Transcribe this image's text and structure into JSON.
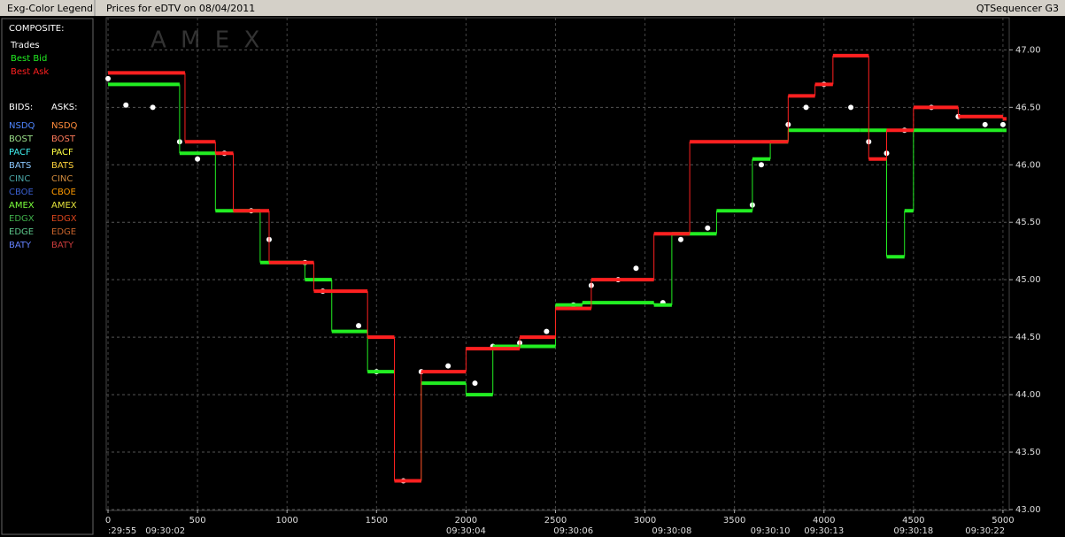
{
  "header": {
    "legend_title": "Exg-Color Legend",
    "title": "Prices for  eDTV  on  08/04/2011",
    "app": "QTSequencer G3"
  },
  "legend": {
    "composite_label": "COMPOSITE:",
    "bids_label": "BIDS:",
    "asks_label": "ASKS:",
    "bids": [
      {
        "name": "NSDQ",
        "color": "#4f86ff"
      },
      {
        "name": "BOST",
        "color": "#9be08a"
      },
      {
        "name": "PACF",
        "color": "#3ff0f0"
      },
      {
        "name": "BATS",
        "color": "#8cc8ff"
      },
      {
        "name": "CINC",
        "color": "#4aa6a6"
      },
      {
        "name": "CBOE",
        "color": "#3a5fd0"
      },
      {
        "name": "AMEX",
        "color": "#7cff3c"
      },
      {
        "name": "EDGX",
        "color": "#3fae4a"
      },
      {
        "name": "EDGE",
        "color": "#5cc58a"
      },
      {
        "name": "BATY",
        "color": "#6482ff"
      }
    ],
    "asks": [
      {
        "name": "NSDQ",
        "color": "#ff8c3c"
      },
      {
        "name": "BOST",
        "color": "#ff7a5a"
      },
      {
        "name": "PACF",
        "color": "#ffff44"
      },
      {
        "name": "BATS",
        "color": "#ffd23c"
      },
      {
        "name": "CINC",
        "color": "#d08a3c"
      },
      {
        "name": "CBOE",
        "color": "#ff9a00"
      },
      {
        "name": "AMEX",
        "color": "#e6e43c"
      },
      {
        "name": "EDGX",
        "color": "#d8441c"
      },
      {
        "name": "EDGE",
        "color": "#c8642c"
      },
      {
        "name": "BATY",
        "color": "#cc3c3c"
      }
    ]
  },
  "chart_data": {
    "type": "line",
    "watermark": "A M E X",
    "xlim": [
      -10,
      5035
    ],
    "ylim": [
      43,
      47.28
    ],
    "grid": true,
    "xticks": [
      0,
      500,
      1000,
      1500,
      2000,
      2500,
      3000,
      3500,
      4000,
      4500,
      5000
    ],
    "time_ticks": [
      {
        "value": 0,
        "label": ":29:55"
      },
      {
        "value": 320,
        "label": "09:30:02"
      },
      {
        "value": 2000,
        "label": "09:30:04"
      },
      {
        "value": 2600,
        "label": "09:30:06"
      },
      {
        "value": 3150,
        "label": "09:30:08"
      },
      {
        "value": 3700,
        "label": "09:30:10"
      },
      {
        "value": 4000,
        "label": "09:30:13"
      },
      {
        "value": 4500,
        "label": "09:30:18"
      },
      {
        "value": 4900,
        "label": "09:30:22"
      }
    ],
    "yticks": [
      {
        "value": 43,
        "label": "43.00"
      },
      {
        "value": 43.5,
        "label": "43.50"
      },
      {
        "value": 44,
        "label": "44.00"
      },
      {
        "value": 44.5,
        "label": "44.50"
      },
      {
        "value": 45,
        "label": "45.00"
      },
      {
        "value": 45.5,
        "label": "45.50"
      },
      {
        "value": 46,
        "label": "46.00"
      },
      {
        "value": 46.5,
        "label": "46.50"
      },
      {
        "value": 47,
        "label": "47.00"
      }
    ],
    "series": [
      {
        "name": "Trades",
        "color": "#ffffff",
        "style": "points",
        "x": [
          0,
          100,
          250,
          400,
          500,
          650,
          800,
          900,
          1100,
          1200,
          1400,
          1500,
          1650,
          1750,
          1900,
          2050,
          2150,
          2300,
          2450,
          2600,
          2700,
          2850,
          2950,
          3100,
          3200,
          3350,
          3600,
          3650,
          3800,
          3900,
          4000,
          4150,
          4250,
          4350,
          4450,
          4600,
          4750,
          4900,
          5000
        ],
        "values": [
          46.75,
          46.52,
          46.5,
          46.2,
          46.05,
          46.1,
          45.6,
          45.35,
          45.15,
          44.9,
          44.6,
          44.2,
          43.25,
          44.2,
          44.25,
          44.1,
          44.42,
          44.45,
          44.55,
          44.78,
          44.95,
          45.0,
          45.1,
          44.8,
          45.35,
          45.45,
          45.65,
          46.0,
          46.35,
          46.5,
          46.7,
          46.5,
          46.2,
          46.1,
          46.3,
          46.5,
          46.42,
          46.35,
          46.35
        ]
      },
      {
        "name": "Best Bid",
        "color": "#22ee22",
        "style": "step",
        "x": [
          0,
          400,
          600,
          850,
          1100,
          1250,
          1450,
          1600,
          1750,
          2000,
          2150,
          2500,
          2650,
          3050,
          3150,
          3400,
          3600,
          3700,
          3800,
          4200,
          4350,
          4450,
          4500,
          5000
        ],
        "values": [
          46.7,
          46.1,
          45.6,
          45.15,
          45.0,
          44.55,
          44.2,
          43.25,
          44.1,
          44.0,
          44.42,
          44.78,
          44.8,
          44.78,
          45.4,
          45.6,
          46.05,
          46.2,
          46.3,
          46.3,
          45.2,
          45.6,
          46.3,
          46.3
        ]
      },
      {
        "name": "Best Ask",
        "color": "#ff2020",
        "style": "step",
        "x": [
          0,
          430,
          600,
          700,
          900,
          1150,
          1450,
          1600,
          1750,
          2000,
          2300,
          2500,
          2700,
          3050,
          3250,
          3650,
          3800,
          3950,
          4050,
          4250,
          4350,
          4500,
          4750,
          5000
        ],
        "values": [
          46.8,
          46.2,
          46.1,
          45.6,
          45.15,
          44.9,
          44.5,
          43.25,
          44.2,
          44.4,
          44.5,
          44.75,
          45.0,
          45.4,
          46.2,
          46.2,
          46.6,
          46.7,
          46.95,
          46.05,
          46.3,
          46.5,
          46.42,
          46.4
        ]
      }
    ]
  }
}
